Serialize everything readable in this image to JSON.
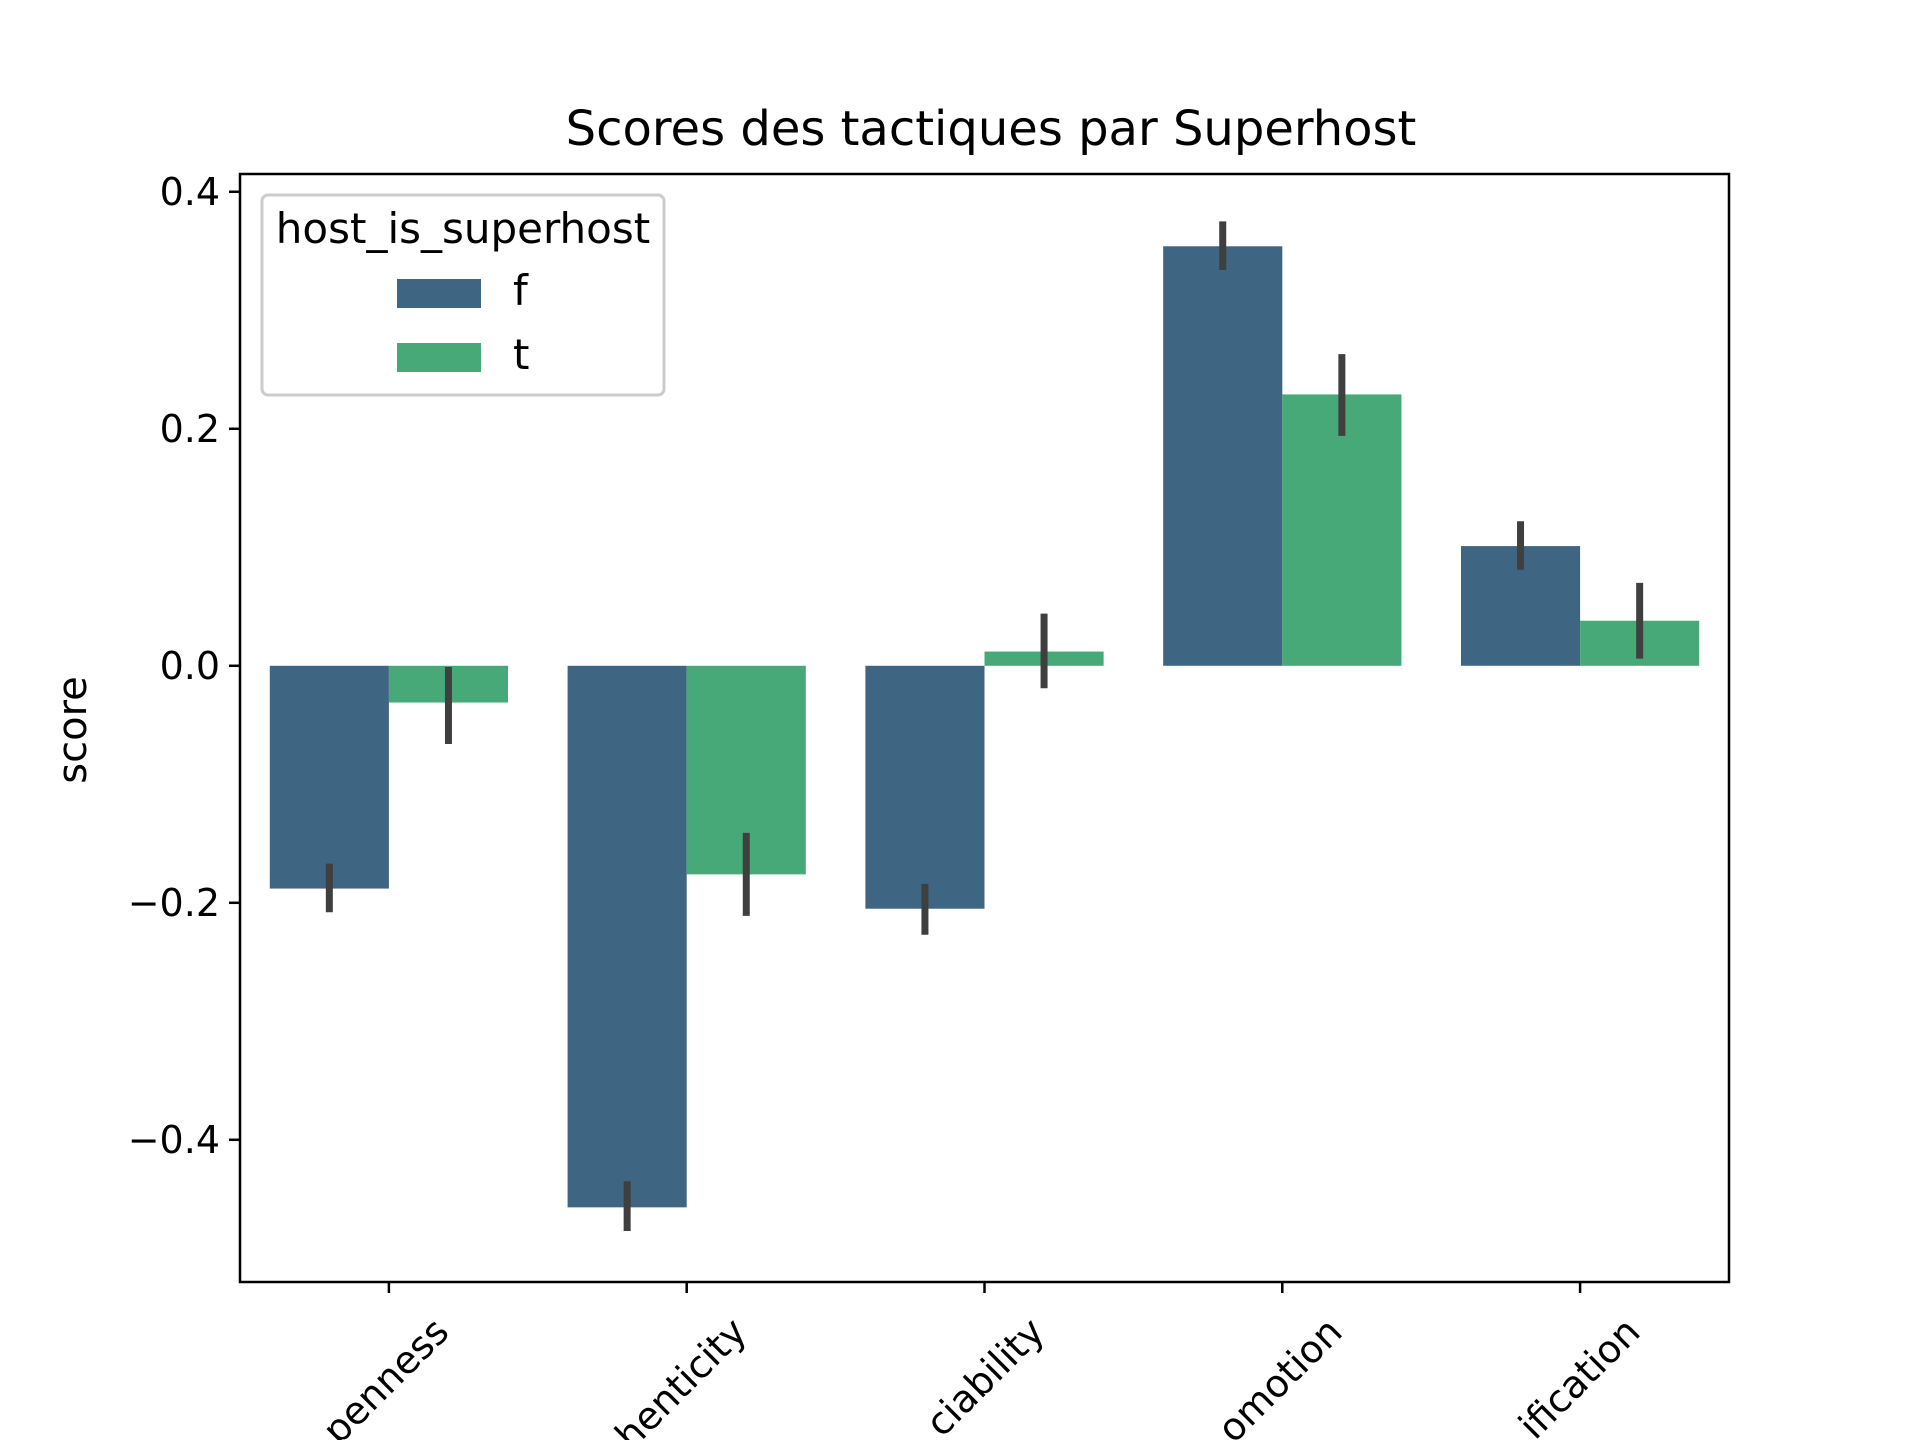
{
  "chart_data": {
    "type": "bar",
    "title": "Scores des tactiques par Superhost",
    "xlabel": "",
    "ylabel": "score",
    "categories": [
      "penness",
      "henticity",
      "ciability",
      "omotion",
      "ification"
    ],
    "ylim": [
      -0.52,
      0.415
    ],
    "yticks": [
      -0.4,
      -0.2,
      0.0,
      0.2,
      0.4
    ],
    "ytick_labels": [
      "−0.4",
      "−0.2",
      "0.0",
      "0.2",
      "0.4"
    ],
    "legend": {
      "title": "host_is_superhost",
      "position": "top-left"
    },
    "grid": false,
    "series": [
      {
        "name": "f",
        "color": "#3e6582",
        "values": [
          -0.188,
          -0.457,
          -0.205,
          0.354,
          0.101
        ],
        "err_low": [
          -0.208,
          -0.477,
          -0.227,
          0.334,
          0.081
        ],
        "err_high": [
          -0.167,
          -0.435,
          -0.184,
          0.375,
          0.122
        ]
      },
      {
        "name": "t",
        "color": "#47a878",
        "values": [
          -0.031,
          -0.176,
          0.012,
          0.229,
          0.038
        ],
        "err_low": [
          -0.066,
          -0.211,
          -0.019,
          0.194,
          0.006
        ],
        "err_high": [
          -0.001,
          -0.141,
          0.044,
          0.263,
          0.07
        ]
      }
    ],
    "errorbar_color": "#3f3f3f"
  }
}
